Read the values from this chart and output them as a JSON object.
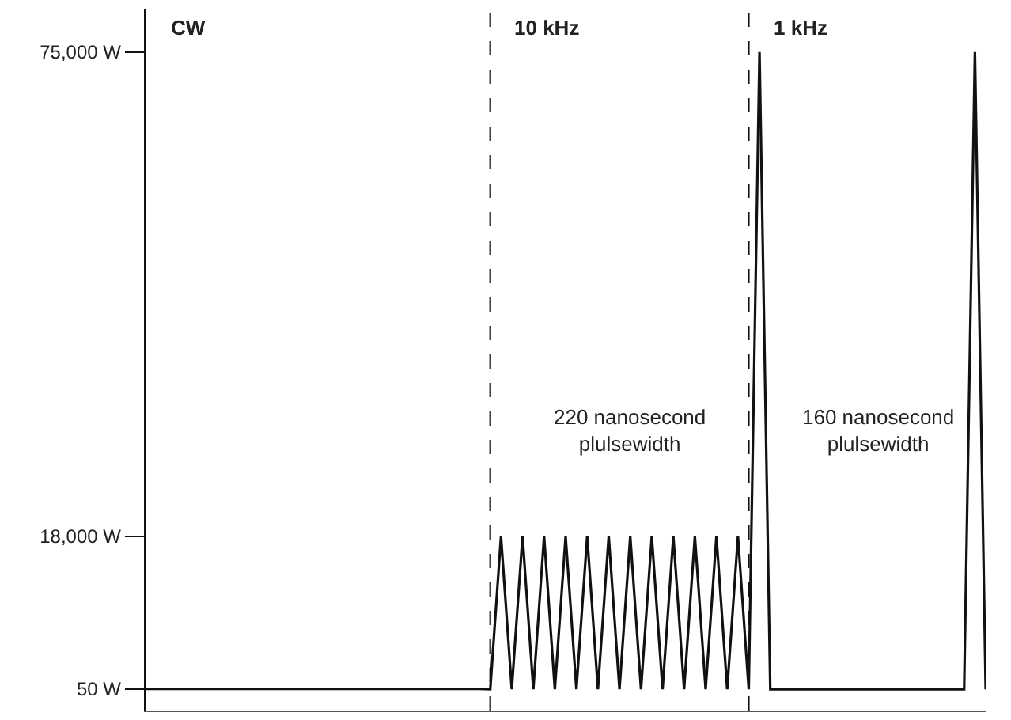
{
  "chart_data": {
    "type": "line",
    "categories": [
      null,
      null,
      null,
      null,
      null,
      null,
      null,
      null,
      null,
      null,
      null,
      null,
      null,
      null,
      null,
      null,
      null,
      null,
      null,
      null,
      null,
      null,
      null,
      null,
      null,
      null,
      null,
      null,
      null,
      null,
      null,
      null,
      null,
      null,
      null,
      null,
      null,
      null,
      null,
      null,
      null,
      null,
      null,
      null,
      null,
      null,
      null,
      null,
      null,
      null,
      null,
      null,
      null,
      null,
      null,
      null,
      null,
      null,
      null,
      null,
      null,
      null,
      null,
      null,
      null,
      null,
      null,
      null,
      null,
      null,
      null,
      null,
      null,
      null,
      null,
      null,
      null,
      null,
      null
    ],
    "series": [
      {
        "color": "#111111",
        "values": [
          50,
          50,
          50,
          50,
          50,
          50,
          50,
          50,
          50,
          50,
          50,
          50,
          50,
          50,
          50,
          50,
          50,
          50,
          50,
          50,
          50,
          50,
          50,
          50,
          50,
          50,
          50,
          50,
          50,
          50,
          50,
          50,
          0,
          18000,
          0,
          18000,
          0,
          18000,
          0,
          18000,
          0,
          18000,
          0,
          18000,
          0,
          18000,
          0,
          18000,
          0,
          18000,
          0,
          18000,
          0,
          18000,
          0,
          18000,
          0,
          75000,
          0,
          0,
          0,
          0,
          0,
          0,
          0,
          0,
          0,
          0,
          0,
          0,
          0,
          0,
          0,
          0,
          0,
          0,
          0,
          75000,
          0
        ]
      }
    ],
    "ylim": [
      -2500,
      80000
    ],
    "yticks": [
      {
        "value": 50,
        "label": "50 W"
      },
      {
        "value": 18000,
        "label": "18,000 W"
      },
      {
        "value": 75000,
        "label": "75,000 W"
      }
    ],
    "tick_labels": "y",
    "grid": false,
    "marker": "none",
    "line_style": "solid",
    "annotations": [
      "CW",
      "10 kHz",
      "1 kHz",
      "220 nanosecond\nplulsewidth",
      "160 nanosecond\nplulsewidth"
    ]
  }
}
